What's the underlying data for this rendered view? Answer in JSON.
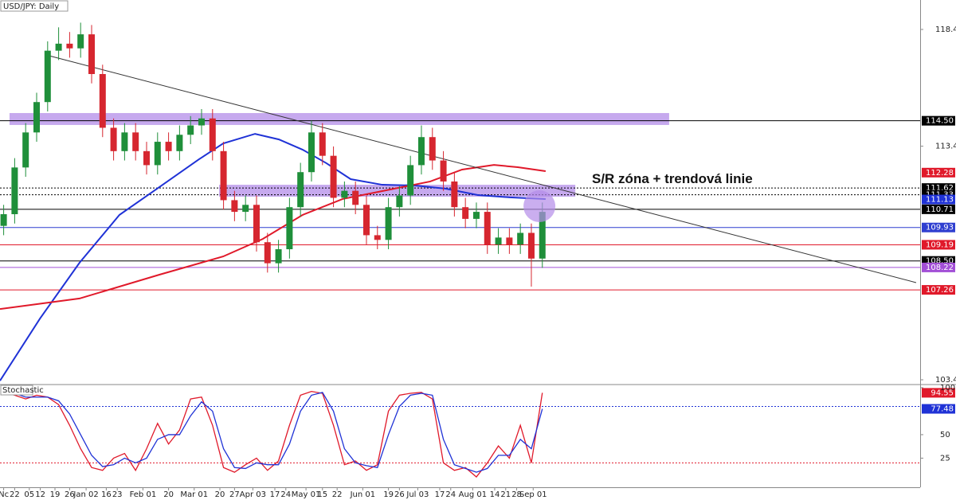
{
  "chart_data": [
    {
      "type": "candlestick",
      "title": "USD/JPY: Daily",
      "annotation": "S/R zóna + trendová linie",
      "x": [
        1,
        4,
        7,
        10,
        13,
        16,
        19,
        22,
        25,
        28,
        31,
        34,
        37,
        40,
        43,
        46,
        49,
        52,
        55,
        58,
        61,
        64,
        67,
        70,
        73,
        76,
        79,
        82,
        85,
        88,
        91,
        94,
        97,
        100,
        103,
        106,
        109,
        112,
        115,
        118,
        121,
        124,
        127,
        130,
        133,
        136,
        139,
        142,
        145,
        148
      ],
      "open": [
        110.0,
        110.5,
        112.5,
        114.0,
        115.3,
        117.5,
        117.8,
        117.6,
        118.2,
        116.5,
        114.2,
        113.2,
        114.0,
        113.2,
        112.6,
        113.6,
        113.2,
        113.9,
        114.3,
        114.6,
        113.2,
        111.1,
        110.6,
        110.9,
        109.3,
        108.4,
        109.0,
        110.8,
        112.3,
        114.0,
        113.0,
        111.2,
        111.5,
        110.9,
        109.6,
        109.4,
        110.8,
        111.3,
        112.6,
        113.8,
        112.8,
        111.9,
        110.8,
        110.3,
        110.6,
        109.2,
        109.5,
        109.2,
        109.7,
        108.6
      ],
      "high": [
        110.9,
        112.9,
        114.4,
        115.7,
        117.9,
        118.5,
        118.3,
        118.7,
        118.6,
        116.9,
        114.6,
        114.4,
        114.4,
        113.6,
        114.0,
        114.0,
        114.3,
        114.7,
        115.0,
        115.0,
        113.6,
        111.5,
        111.3,
        111.3,
        109.7,
        109.4,
        111.2,
        112.7,
        114.5,
        114.4,
        113.4,
        111.9,
        111.9,
        111.3,
        110.0,
        111.2,
        111.7,
        113.0,
        114.3,
        114.2,
        113.2,
        112.3,
        111.2,
        111.0,
        111.0,
        109.9,
        109.9,
        110.1,
        110.1,
        111.0
      ],
      "low": [
        109.6,
        110.1,
        112.1,
        113.6,
        114.9,
        117.1,
        117.2,
        117.2,
        116.1,
        113.8,
        112.8,
        112.8,
        112.8,
        112.2,
        112.2,
        112.8,
        112.8,
        113.5,
        113.9,
        112.8,
        110.7,
        110.2,
        110.2,
        108.9,
        108.0,
        108.0,
        108.6,
        110.4,
        111.9,
        112.6,
        110.8,
        110.8,
        110.5,
        109.2,
        109.0,
        109.0,
        110.4,
        110.9,
        112.2,
        112.4,
        111.5,
        110.4,
        109.9,
        109.9,
        108.8,
        108.8,
        108.8,
        108.8,
        107.4,
        108.2
      ],
      "close": [
        110.5,
        112.5,
        114.0,
        115.3,
        117.5,
        117.8,
        117.6,
        118.2,
        116.5,
        114.2,
        113.2,
        114.0,
        113.2,
        112.6,
        113.6,
        113.2,
        113.9,
        114.3,
        114.6,
        113.2,
        111.1,
        110.6,
        110.9,
        109.3,
        108.4,
        109.0,
        110.8,
        112.3,
        114.0,
        113.0,
        111.2,
        111.5,
        110.9,
        109.6,
        109.4,
        110.8,
        111.3,
        112.6,
        113.8,
        112.8,
        111.9,
        110.8,
        110.3,
        110.6,
        109.2,
        109.5,
        109.2,
        109.7,
        108.6,
        110.6
      ],
      "up_color": "#1f8f3a",
      "down_color": "#d6262f",
      "moving_averages": [
        {
          "color": "#1f32d6",
          "x": [
            0,
            10.9,
            21.7,
            32.6,
            43.5,
            54.3,
            60.9,
            69.6,
            76.1,
            82.6,
            89.1,
            95.7,
            104.3,
            113,
            121.7,
            130.4,
            139.1,
            148.9
          ],
          "values": [
            103.37,
            106.03,
            108.42,
            110.47,
            111.66,
            112.85,
            113.53,
            113.94,
            113.7,
            113.26,
            112.68,
            112.0,
            111.76,
            111.73,
            111.59,
            111.32,
            111.22,
            111.15
          ]
        },
        {
          "color": "#e0192a",
          "x": [
            0,
            21.7,
            43.5,
            60.9,
            71.7,
            82.6,
            93.5,
            104.3,
            117.4,
            126.1,
            134.8,
            141.3,
            148.9
          ],
          "values": [
            106.44,
            106.89,
            107.91,
            108.69,
            109.44,
            110.47,
            111.15,
            111.49,
            111.9,
            112.41,
            112.61,
            112.51,
            112.34
          ]
        }
      ],
      "trendline": {
        "x": [
          13.5,
          250
        ],
        "values": [
          117.28,
          107.57
        ],
        "color": "#333333"
      },
      "zones": [
        {
          "x": [
            2.6,
            182.6
          ],
          "values": [
            114.83,
            114.32
          ]
        },
        {
          "x": [
            59.8,
            157
          ],
          "values": [
            111.76,
            111.25
          ]
        }
      ],
      "zone_color": "#b38ce8",
      "highlight": {
        "x": 147.2,
        "y": 110.84
      },
      "levels": [
        {
          "value": 114.5,
          "label": "114.50",
          "color": "#000000",
          "style": "solid"
        },
        {
          "value": 112.28,
          "label": "112.28",
          "color": "#e0192a",
          "style": "none"
        },
        {
          "value": 111.62,
          "label": "111.62",
          "color": "#000000",
          "style": "dotted"
        },
        {
          "value": 111.33,
          "label": "111.33",
          "color": "#000000",
          "style": "dotted"
        },
        {
          "value": 111.13,
          "label": "111.13",
          "color": "#1f32d6",
          "style": "none"
        },
        {
          "value": 110.71,
          "label": "110.71",
          "color": "#000000",
          "style": "solid"
        },
        {
          "value": 109.93,
          "label": "109.93",
          "color": "#2f3fd0",
          "style": "solid"
        },
        {
          "value": 109.19,
          "label": "109.19",
          "color": "#e0192a",
          "style": "solid"
        },
        {
          "value": 108.5,
          "label": "108.50",
          "color": "#000000",
          "style": "solid"
        },
        {
          "value": 108.22,
          "label": "108.22",
          "color": "#a24fd6",
          "style": "solid"
        },
        {
          "value": 107.26,
          "label": "107.26",
          "color": "#e0192a",
          "style": "solid"
        }
      ],
      "xlim": [
        0,
        251.1
      ],
      "ylim": [
        103.24,
        119.67
      ],
      "yticks": [
        118.41,
        113.41,
        103.41
      ],
      "xticks": [
        {
          "value": 1,
          "label": "Nc"
        },
        {
          "value": 4,
          "label": "22"
        },
        {
          "value": 8,
          "label": "05"
        },
        {
          "value": 11,
          "label": "12"
        },
        {
          "value": 15,
          "label": "19"
        },
        {
          "value": 19,
          "label": "26"
        },
        {
          "value": 23.5,
          "label": "Jan 02"
        },
        {
          "value": 29,
          "label": "16"
        },
        {
          "value": 32,
          "label": "23"
        },
        {
          "value": 39,
          "label": "Feb 01"
        },
        {
          "value": 46,
          "label": "20"
        },
        {
          "value": 53,
          "label": "Mar 01"
        },
        {
          "value": 60,
          "label": "20"
        },
        {
          "value": 64,
          "label": "27"
        },
        {
          "value": 69,
          "label": "Apr 03"
        },
        {
          "value": 75,
          "label": "17"
        },
        {
          "value": 78,
          "label": "24"
        },
        {
          "value": 83.5,
          "label": "May 01"
        },
        {
          "value": 88,
          "label": "15"
        },
        {
          "value": 92,
          "label": "22"
        },
        {
          "value": 99,
          "label": "Jun 01"
        },
        {
          "value": 106,
          "label": "19"
        },
        {
          "value": 109,
          "label": "26"
        },
        {
          "value": 114,
          "label": "Jul 03"
        },
        {
          "value": 120,
          "label": "17"
        },
        {
          "value": 123,
          "label": "24"
        },
        {
          "value": 129,
          "label": "Aug 01"
        },
        {
          "value": 135,
          "label": "14"
        },
        {
          "value": 138,
          "label": "21"
        },
        {
          "value": 141,
          "label": "28"
        },
        {
          "value": 145.5,
          "label": "Sep 01"
        }
      ]
    },
    {
      "type": "line",
      "title": "Stochastic",
      "series": [
        {
          "color": "#e0192a",
          "values": [
            95,
            92,
            88,
            92,
            90,
            82,
            60,
            35,
            15,
            12,
            25,
            30,
            12,
            35,
            62,
            40,
            55,
            88,
            90,
            60,
            15,
            10,
            18,
            25,
            12,
            22,
            60,
            92,
            96,
            94,
            60,
            18,
            22,
            12,
            18,
            75,
            92,
            94,
            95,
            88,
            20,
            12,
            15,
            5,
            20,
            38,
            25,
            60,
            20,
            94.55
          ]
        },
        {
          "color": "#1f32d6",
          "values": [
            93,
            94,
            90,
            90,
            90,
            86,
            72,
            50,
            28,
            16,
            18,
            25,
            20,
            25,
            45,
            50,
            50,
            70,
            85,
            75,
            35,
            15,
            14,
            20,
            18,
            18,
            40,
            75,
            92,
            95,
            75,
            35,
            20,
            17,
            15,
            50,
            80,
            92,
            94,
            92,
            45,
            18,
            14,
            10,
            14,
            28,
            28,
            45,
            35,
            77.48
          ]
        }
      ],
      "levels": [
        {
          "value": 80,
          "color": "#1f32d6"
        },
        {
          "value": 20,
          "color": "#e0192a"
        }
      ],
      "ylim": [
        -6,
        102.5
      ],
      "yticks": [
        100,
        50,
        25
      ]
    }
  ]
}
